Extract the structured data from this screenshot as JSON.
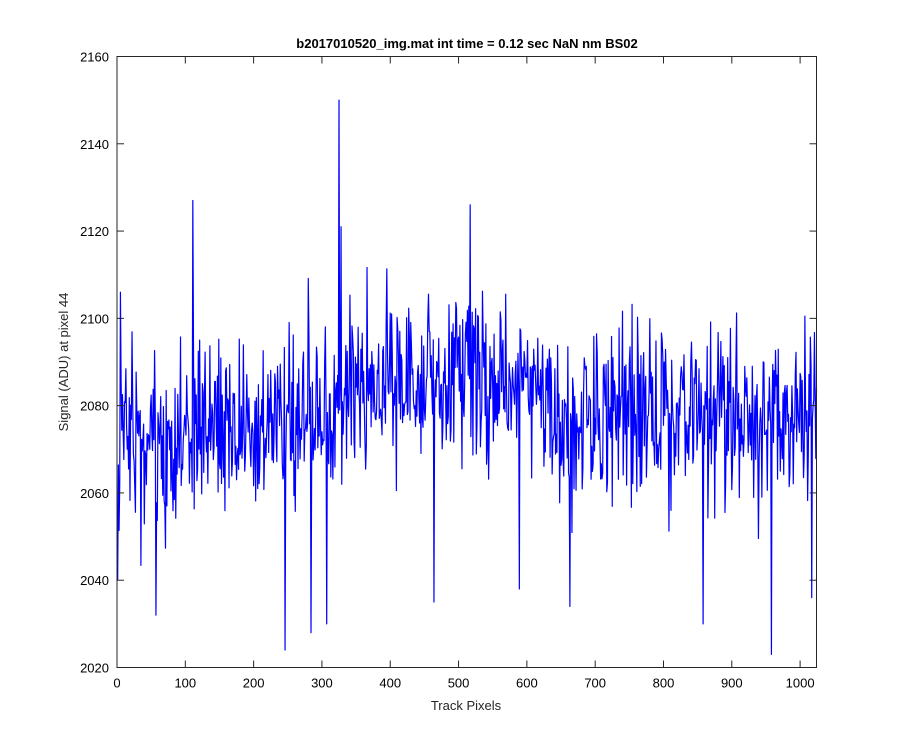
{
  "chart_data": {
    "type": "line",
    "title": "b2017010520_img.mat int time = 0.12 sec  NaN nm BS02",
    "xlabel": "Track Pixels",
    "ylabel": "Signal (ADU) at pixel 44",
    "xlim": [
      0,
      1024
    ],
    "ylim": [
      2020,
      2160
    ],
    "xticks": [
      0,
      100,
      200,
      300,
      400,
      500,
      600,
      700,
      800,
      900,
      1000
    ],
    "yticks": [
      2020,
      2040,
      2060,
      2080,
      2100,
      2120,
      2140,
      2160
    ],
    "grid": false,
    "legend": "none",
    "series_color": "#0000ff",
    "series": [
      {
        "x_start": 1,
        "x_step": 1,
        "note_values": "signal per track pixel, noise around ~2075-2085",
        "key_points": [
          {
            "x": 1,
            "y": 2040
          },
          {
            "x": 5,
            "y": 2106
          },
          {
            "x": 57,
            "y": 2032
          },
          {
            "x": 111,
            "y": 2127
          },
          {
            "x": 246,
            "y": 2024
          },
          {
            "x": 284,
            "y": 2028
          },
          {
            "x": 307,
            "y": 2030
          },
          {
            "x": 325,
            "y": 2150
          },
          {
            "x": 328,
            "y": 2121
          },
          {
            "x": 464,
            "y": 2035
          },
          {
            "x": 517,
            "y": 2126
          },
          {
            "x": 589,
            "y": 2038
          },
          {
            "x": 663,
            "y": 2034
          },
          {
            "x": 858,
            "y": 2030
          },
          {
            "x": 958,
            "y": 2023
          },
          {
            "x": 1017,
            "y": 2036
          },
          {
            "x": 1024,
            "y": 2084
          }
        ],
        "generator": {
          "length": 1024,
          "seed": 20170105,
          "amplitude": 13
        }
      }
    ]
  }
}
